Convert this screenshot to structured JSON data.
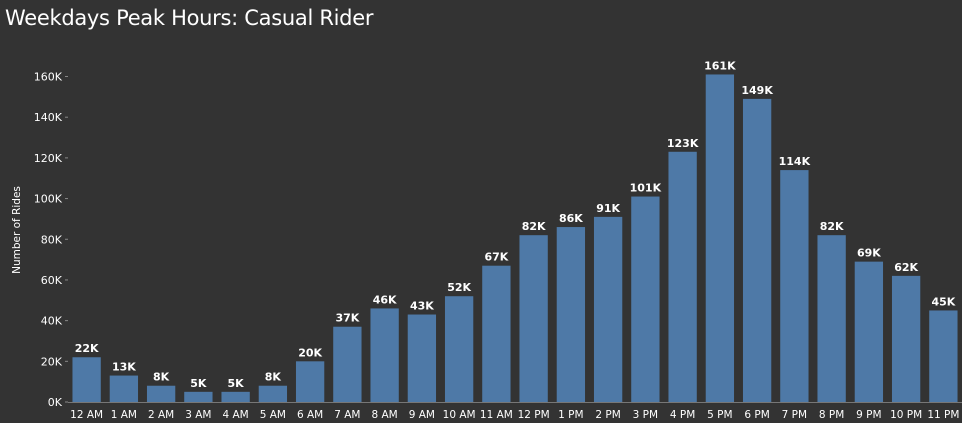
{
  "chart_data": {
    "type": "bar",
    "title": "Weekdays Peak Hours: Casual Rider",
    "ylabel": "Number of Rides",
    "xlabel": "",
    "ylim": [
      0,
      175000
    ],
    "yticks": [
      0,
      20000,
      40000,
      60000,
      80000,
      100000,
      120000,
      140000,
      160000
    ],
    "ytick_labels": [
      "0K",
      "20K",
      "40K",
      "60K",
      "80K",
      "100K",
      "120K",
      "140K",
      "160K"
    ],
    "categories": [
      "12 AM",
      "1 AM",
      "2 AM",
      "3 AM",
      "4 AM",
      "5 AM",
      "6 AM",
      "7 AM",
      "8 AM",
      "9 AM",
      "10 AM",
      "11 AM",
      "12 PM",
      "1 PM",
      "2 PM",
      "3 PM",
      "4 PM",
      "5 PM",
      "6 PM",
      "7 PM",
      "8 PM",
      "9 PM",
      "10 PM",
      "11 PM"
    ],
    "values": [
      22000,
      13000,
      8000,
      5000,
      5000,
      8000,
      20000,
      37000,
      46000,
      43000,
      52000,
      67000,
      82000,
      86000,
      91000,
      101000,
      123000,
      161000,
      149000,
      114000,
      82000,
      69000,
      62000,
      45000
    ],
    "data_labels": [
      "22K",
      "13K",
      "8K",
      "5K",
      "5K",
      "8K",
      "20K",
      "37K",
      "46K",
      "43K",
      "52K",
      "67K",
      "82K",
      "86K",
      "91K",
      "101K",
      "123K",
      "161K",
      "149K",
      "114K",
      "82K",
      "69K",
      "62K",
      "45K"
    ],
    "bar_color": "#4e79a7",
    "background": "#333333",
    "grid": false,
    "legend": "none"
  }
}
